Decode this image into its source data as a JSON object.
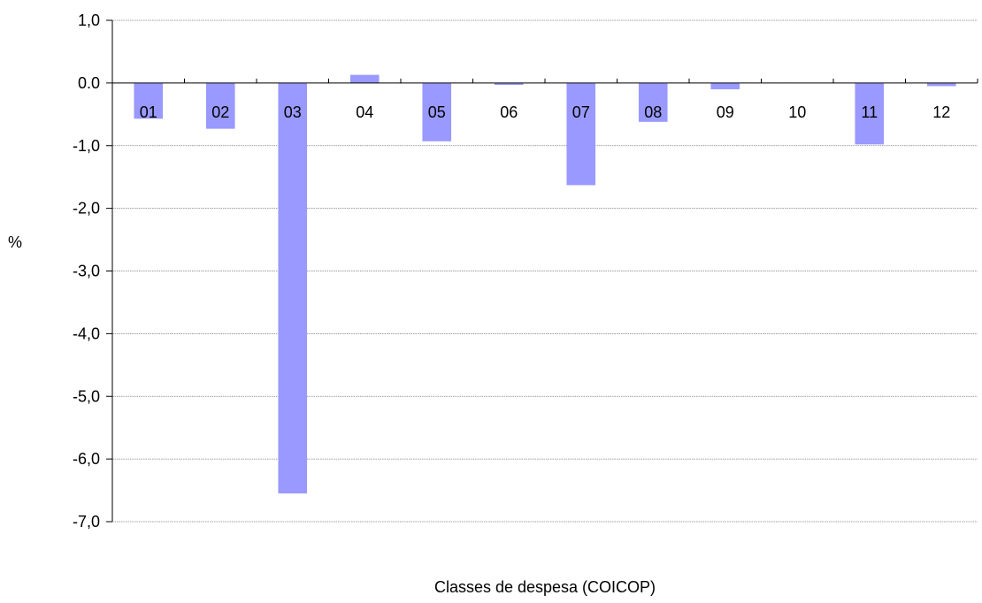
{
  "chart_data": {
    "type": "bar",
    "categories": [
      "01",
      "02",
      "03",
      "04",
      "05",
      "06",
      "07",
      "08",
      "09",
      "10",
      "11",
      "12"
    ],
    "values": [
      -0.57,
      -0.73,
      -6.55,
      0.13,
      -0.93,
      -0.03,
      -1.63,
      -0.62,
      -0.1,
      0.0,
      -0.98,
      -0.05
    ],
    "title": "",
    "xlabel": "Classes de despesa (COICOP)",
    "ylabel": "%",
    "ylim": [
      -7.0,
      1.0
    ],
    "yticks": [
      1.0,
      0.0,
      -1.0,
      -2.0,
      -3.0,
      -4.0,
      -5.0,
      -6.0,
      -7.0
    ],
    "ytick_labels": [
      "1,0",
      "0.0",
      "-1,0",
      "-2,0",
      "-3,0",
      "-4,0",
      "-5,0",
      "-6,0",
      "-7,0"
    ],
    "grid": true,
    "colors": {
      "bar": "#9999ff",
      "grid": "#808080",
      "axis": "#000000"
    }
  }
}
